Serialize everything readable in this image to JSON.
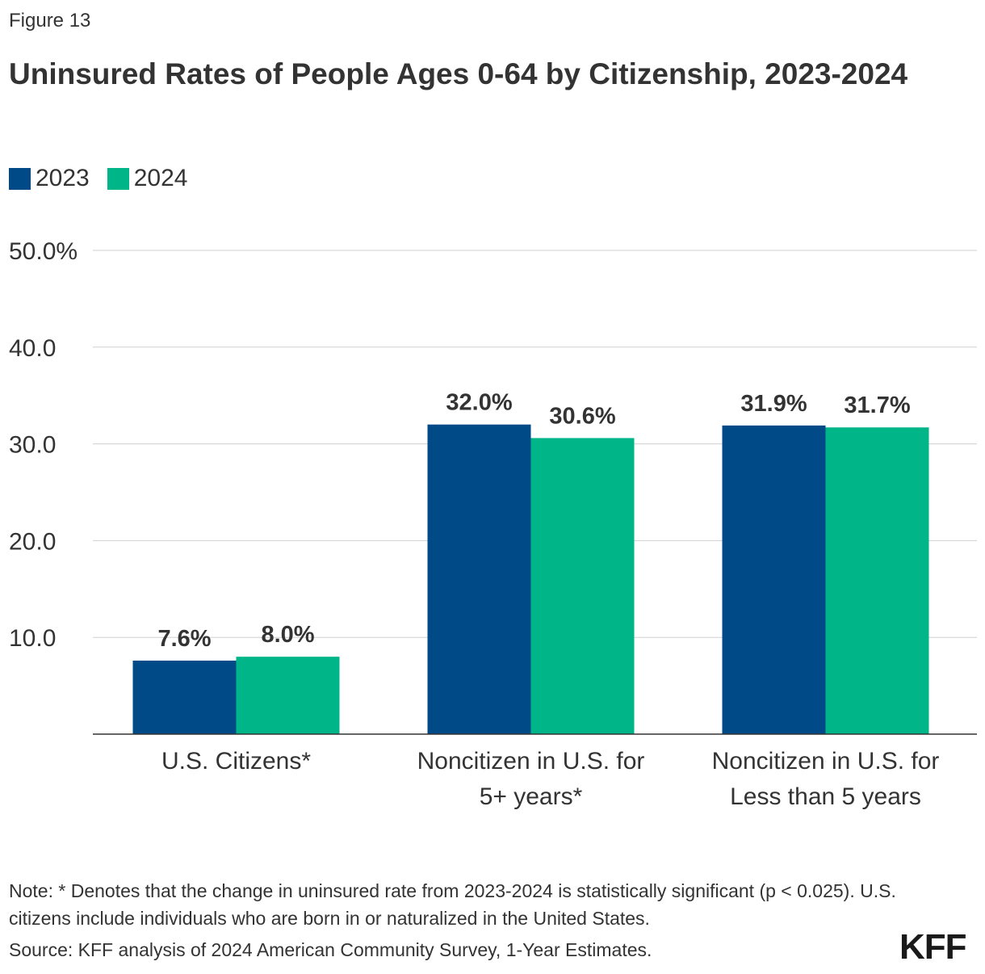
{
  "figure_label": "Figure 13",
  "logo": "KFF",
  "note": "Note: * Denotes that the change in uninsured rate from 2023-2024 is statistically significant (p < 0.025). U.S. citizens include individuals who are born in or naturalized in the United States.",
  "source": "Source: KFF analysis of 2024 American Community Survey, 1-Year Estimates.",
  "chart_data": {
    "type": "bar",
    "title": "Uninsured Rates of People Ages 0-64 by Citizenship, 2023-2024",
    "categories": [
      [
        "U.S. Citizens*"
      ],
      [
        "Noncitizen in U.S. for",
        "5+ years*"
      ],
      [
        "Noncitizen in U.S. for",
        "Less than 5 years"
      ]
    ],
    "series": [
      {
        "name": "2023",
        "color": "#004a87",
        "values": [
          7.6,
          32.0,
          31.9
        ],
        "labels": [
          "7.6%",
          "32.0%",
          "31.9%"
        ]
      },
      {
        "name": "2024",
        "color": "#00b588",
        "values": [
          8.0,
          30.6,
          31.7
        ],
        "labels": [
          "8.0%",
          "30.6%",
          "31.7%"
        ]
      }
    ],
    "ylim": [
      0,
      50
    ],
    "yticks": [
      10,
      20,
      30,
      40,
      50
    ],
    "ytick_labels": [
      "10.0",
      "20.0",
      "30.0",
      "40.0",
      "50.0%"
    ],
    "grid": true,
    "legend_position": "top-left"
  }
}
